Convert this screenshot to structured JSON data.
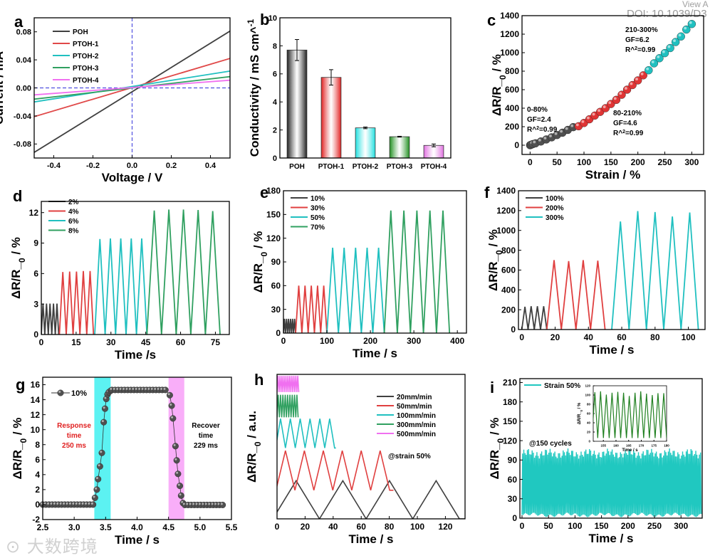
{
  "header": {
    "view_text": "View A",
    "doi": "DOI: 10.1039/D3"
  },
  "watermark": {
    "logo_text": "大数跨境"
  },
  "chart_data": [
    {
      "id": "a",
      "panel_label": "a",
      "type": "line",
      "xlabel": "Voltage / V",
      "ylabel": "Current / mA",
      "xlim": [
        -0.5,
        0.5
      ],
      "ylim": [
        -0.1,
        0.1
      ],
      "xticks": [
        -0.4,
        -0.2,
        0.0,
        0.2,
        0.4
      ],
      "xtick_labels": [
        "-0.4",
        "-0.2",
        "0.0",
        "0.2",
        "0.4"
      ],
      "yticks": [
        -0.08,
        -0.04,
        0.0,
        0.04,
        0.08
      ],
      "ytick_labels": [
        "-0.08",
        "-0.04",
        "0.00",
        "0.04",
        "0.08"
      ],
      "legend": "top-left",
      "reference_lines": {
        "x": 0,
        "y": 0,
        "color": "#5050e0"
      },
      "series": [
        {
          "name": "POH",
          "color": "#404040",
          "x": [
            -0.5,
            0.5
          ],
          "y": [
            -0.092,
            0.081
          ]
        },
        {
          "name": "PTOH-1",
          "color": "#e04848",
          "x": [
            -0.5,
            0.5
          ],
          "y": [
            -0.041,
            0.042
          ]
        },
        {
          "name": "PTOH-2",
          "color": "#20c0c0",
          "x": [
            -0.5,
            0.5
          ],
          "y": [
            -0.02,
            0.024
          ]
        },
        {
          "name": "PTOH-3",
          "color": "#30a060",
          "x": [
            -0.5,
            0.5
          ],
          "y": [
            -0.016,
            0.016
          ]
        },
        {
          "name": "PTOH-4",
          "color": "#f070f0",
          "x": [
            -0.5,
            0.5
          ],
          "y": [
            -0.01,
            0.011
          ]
        }
      ]
    },
    {
      "id": "b",
      "panel_label": "b",
      "type": "bar",
      "xlabel": "",
      "ylabel": "Conductivity / mS cm^-1",
      "ylim": [
        0,
        10
      ],
      "yticks": [
        0,
        2,
        4,
        6,
        8,
        10
      ],
      "ytick_labels": [
        "0",
        "2",
        "4",
        "6",
        "8",
        "10"
      ],
      "categories": [
        "POH",
        "PTOH-1",
        "PTOH-2",
        "PTOH-3",
        "PTOH-4"
      ],
      "values": [
        7.7,
        5.75,
        2.15,
        1.52,
        0.9
      ],
      "errors": [
        0.75,
        0.55,
        0.06,
        0.03,
        0.1
      ],
      "colors": [
        "#202020",
        "#e02020",
        "#20e0e0",
        "#209020",
        "#e070e0"
      ]
    },
    {
      "id": "c",
      "panel_label": "c",
      "type": "scatter",
      "xlabel": "Strain / %",
      "ylabel": "ΔR/R_0 / %",
      "xlim": [
        -15,
        322
      ],
      "ylim": [
        -100,
        1400
      ],
      "xticks": [
        0,
        50,
        100,
        150,
        200,
        250,
        300
      ],
      "xtick_labels": [
        "0",
        "50",
        "100",
        "150",
        "200",
        "250",
        "300"
      ],
      "yticks": [
        0,
        200,
        400,
        600,
        800,
        1000,
        1200,
        1400
      ],
      "ytick_labels": [
        "0",
        "200",
        "400",
        "600",
        "800",
        "1000",
        "1200",
        "1400"
      ],
      "series": [
        {
          "name": "0-80%",
          "color": "#505050",
          "x": [
            0,
            2,
            5,
            10,
            20,
            30,
            40,
            50,
            60,
            70,
            80
          ],
          "y": [
            0,
            5,
            12,
            20,
            40,
            62,
            85,
            110,
            135,
            165,
            195
          ]
        },
        {
          "name": "80-210%",
          "color": "#e03535",
          "x": [
            90,
            100,
            110,
            120,
            130,
            140,
            150,
            160,
            170,
            180,
            190,
            200,
            210
          ],
          "y": [
            205,
            240,
            280,
            320,
            360,
            400,
            445,
            490,
            545,
            600,
            650,
            700,
            755
          ]
        },
        {
          "name": "210-300%",
          "color": "#20c0c0",
          "x": [
            220,
            230,
            240,
            250,
            260,
            270,
            280,
            290,
            300
          ],
          "y": [
            810,
            885,
            940,
            995,
            1050,
            1115,
            1175,
            1250,
            1310
          ]
        }
      ],
      "annotations": [
        {
          "lines": [
            "0-80%",
            "GF=2.4",
            "R^2=0.99"
          ]
        },
        {
          "lines": [
            "80-210%",
            "GF=4.6",
            "R^2=0.99"
          ]
        },
        {
          "lines": [
            "210-300%",
            "GF=6.2",
            "R^2=0.99"
          ]
        }
      ]
    },
    {
      "id": "d",
      "panel_label": "d",
      "type": "line",
      "xlabel": "Time /s",
      "ylabel": "ΔR/R_0 / %",
      "xlim": [
        0,
        81
      ],
      "ylim": [
        0,
        13.1
      ],
      "xticks": [
        0,
        15,
        30,
        45,
        60,
        75
      ],
      "xtick_labels": [
        "0",
        "15",
        "30",
        "45",
        "60",
        "75"
      ],
      "yticks": [
        0,
        3,
        6,
        9,
        12
      ],
      "ytick_labels": [
        "0",
        "3",
        "6",
        "9",
        "12"
      ],
      "series": [
        {
          "name": "2%",
          "color": "#404040",
          "start": 0,
          "end": 7.5,
          "cycles": 5,
          "peaks": [
            3.05,
            3.05,
            3.05,
            3.05,
            3.05
          ]
        },
        {
          "name": "4%",
          "color": "#e04040",
          "start": 7.8,
          "end": 22.5,
          "cycles": 5,
          "peaks": [
            6.15,
            6.2,
            6.2,
            6.25,
            6.25
          ]
        },
        {
          "name": "6%",
          "color": "#20c0c0",
          "start": 23,
          "end": 45.5,
          "cycles": 5,
          "peaks": [
            9.4,
            9.45,
            9.45,
            9.45,
            9.45
          ]
        },
        {
          "name": "8%",
          "color": "#30a060",
          "start": 45.5,
          "end": 77,
          "cycles": 5,
          "peaks": [
            12.2,
            12.3,
            12.3,
            12.25,
            12.15
          ]
        }
      ]
    },
    {
      "id": "e",
      "panel_label": "e",
      "type": "line",
      "xlabel": "Time / s",
      "ylabel": "ΔR/R_0 / %",
      "xlim": [
        0,
        421
      ],
      "ylim": [
        0,
        180
      ],
      "xticks": [
        0,
        100,
        200,
        300,
        400
      ],
      "xtick_labels": [
        "0",
        "100",
        "200",
        "300",
        "400"
      ],
      "yticks": [
        0,
        30,
        60,
        90,
        120,
        150,
        180
      ],
      "ytick_labels": [
        "0",
        "30",
        "60",
        "90",
        "120",
        "150",
        "180"
      ],
      "series": [
        {
          "name": "10%",
          "color": "#404040",
          "start": 0,
          "end": 28,
          "cycles": 6,
          "peaks": [
            18,
            18,
            18,
            18,
            18,
            18
          ]
        },
        {
          "name": "30%",
          "color": "#e04040",
          "start": 28,
          "end": 100,
          "cycles": 5,
          "peaks": [
            60,
            60,
            60,
            60,
            60
          ]
        },
        {
          "name": "50%",
          "color": "#20c0c0",
          "start": 100,
          "end": 232,
          "cycles": 5,
          "peaks": [
            108,
            108,
            108,
            108,
            108
          ]
        },
        {
          "name": "70%",
          "color": "#30a060",
          "start": 232,
          "end": 382,
          "cycles": 5,
          "peaks": [
            155,
            155,
            155,
            155,
            155
          ]
        }
      ]
    },
    {
      "id": "f",
      "panel_label": "f",
      "type": "line",
      "xlabel": "Time / s",
      "ylabel": "ΔR/R_0 / %",
      "xlim": [
        -2,
        110
      ],
      "ylim": [
        0,
        1400
      ],
      "xticks": [
        0,
        20,
        40,
        60,
        80,
        100
      ],
      "xtick_labels": [
        "0",
        "20",
        "40",
        "60",
        "80",
        "100"
      ],
      "yticks": [
        0,
        200,
        400,
        600,
        800,
        1000,
        1200,
        1400
      ],
      "ytick_labels": [
        "0",
        "200",
        "400",
        "600",
        "800",
        "1000",
        "1200",
        "1400"
      ],
      "series": [
        {
          "name": "100%",
          "color": "#404040",
          "start": 0,
          "end": 15,
          "cycles": 4,
          "peaks": [
            230,
            235,
            235,
            235
          ]
        },
        {
          "name": "200%",
          "color": "#e04040",
          "start": 15,
          "end": 50,
          "cycles": 4,
          "peaks": [
            700,
            690,
            700,
            695
          ]
        },
        {
          "name": "300%",
          "color": "#20c0c0",
          "start": 54,
          "end": 106,
          "cycles": 5,
          "peaks": [
            1090,
            1195,
            1185,
            1140,
            1180
          ]
        }
      ]
    },
    {
      "id": "g",
      "panel_label": "g",
      "type": "scatter",
      "xlabel": "Time / s",
      "ylabel": "ΔR/R_0 / %",
      "xlim": [
        2.5,
        5.5
      ],
      "ylim": [
        -2,
        17
      ],
      "xticks": [
        2.5,
        3.0,
        3.5,
        4.0,
        4.5,
        5.0,
        5.5
      ],
      "xtick_labels": [
        "2.5",
        "3.0",
        "3.5",
        "4.0",
        "4.5",
        "5.0",
        "5.5"
      ],
      "yticks": [
        -2,
        0,
        2,
        4,
        6,
        8,
        10,
        12,
        14,
        16
      ],
      "ytick_labels": [
        "-2",
        "0",
        "2",
        "4",
        "6",
        "8",
        "10",
        "12",
        "14",
        "16"
      ],
      "series": [
        {
          "name": "10%",
          "color": "#505050",
          "flat": [
            [
              2.5,
              3.3,
              0
            ],
            [
              3.6,
              4.48,
              15.3
            ],
            [
              4.76,
              5.4,
              -0.05
            ]
          ],
          "x": [
            3.33,
            3.36,
            3.38,
            3.41,
            3.44,
            3.47,
            3.49,
            3.51,
            3.53,
            3.55,
            3.58,
            4.52,
            4.55,
            4.57,
            4.61,
            4.63,
            4.65,
            4.68,
            4.7,
            4.73
          ],
          "y": [
            0.9,
            2.0,
            3.4,
            5.1,
            6.9,
            11.0,
            12.8,
            14.1,
            14.7,
            15.0,
            15.2,
            14.6,
            13.2,
            11.5,
            7.8,
            5.9,
            4.1,
            2.5,
            1.2,
            0.2
          ]
        }
      ],
      "bands": [
        {
          "from": 3.32,
          "to": 3.58,
          "color": "#40f0f0",
          "label": [
            "Response",
            "time",
            "250 ms"
          ],
          "label_color": "#e02020"
        },
        {
          "from": 4.5,
          "to": 4.75,
          "color": "#f8a0f8",
          "label": [
            "Recover",
            "time",
            "229 ms"
          ],
          "label_color": "#000000"
        }
      ]
    },
    {
      "id": "h",
      "panel_label": "h",
      "type": "line",
      "xlabel": "Time / s",
      "ylabel": "ΔR/R_0 / a.u.",
      "xlim": [
        0,
        134
      ],
      "ylim": [
        0,
        10.6
      ],
      "xticks": [
        0,
        20,
        40,
        60,
        80,
        100,
        120
      ],
      "xtick_labels": [
        "0",
        "20",
        "40",
        "60",
        "80",
        "100",
        "120"
      ],
      "annotation": "@strain 50%",
      "series": [
        {
          "name": "20mm/min",
          "color": "#404040",
          "start": -3,
          "end": 130,
          "cycles": 4,
          "base": 0,
          "peak": 2.8,
          "tail": 134
        },
        {
          "name": "50mm/min",
          "color": "#e04040",
          "start": -0.75,
          "end": 80.25,
          "cycles": 6,
          "base": 2.1,
          "peak": 5.0,
          "tail": 83
        },
        {
          "name": "100mm/min",
          "color": "#20c0c0",
          "start": -1,
          "end": 41,
          "cycles": 6,
          "base": 5.2,
          "peak": 7.35,
          "tail": 42
        },
        {
          "name": "300mm/min",
          "color": "#30a060",
          "start": 0,
          "end": 15,
          "cycles": 9,
          "base": 7.45,
          "peak": 9.1,
          "tail": 15
        },
        {
          "name": "500mm/min",
          "color": "#f070f0",
          "start": 0,
          "end": 15.5,
          "cycles": 11,
          "base": 9.3,
          "peak": 10.5,
          "tail": 15.5
        }
      ]
    },
    {
      "id": "i",
      "panel_label": "i",
      "type": "line",
      "xlabel": "Time / s",
      "ylabel": "ΔR/R_0 / %",
      "xlim": [
        -4,
        340
      ],
      "ylim": [
        0,
        216
      ],
      "xticks": [
        0,
        50,
        100,
        150,
        200,
        250,
        300
      ],
      "xtick_labels": [
        "0",
        "50",
        "100",
        "150",
        "200",
        "250",
        "300"
      ],
      "yticks": [
        0,
        30,
        60,
        90,
        120,
        150,
        180,
        210
      ],
      "ytick_labels": [
        "0",
        "30",
        "60",
        "90",
        "120",
        "150",
        "180",
        "210"
      ],
      "annotation": "@150 cycles",
      "series": [
        {
          "name": "Strain 50%",
          "color": "#20c8c0",
          "start": 0,
          "end": 338,
          "cycles": 150,
          "peak_mean": 100,
          "min_mean": 5
        }
      ],
      "inset": {
        "xlabel": "Time / s",
        "ylabel": "ΔR/R_0 / %",
        "xlim": [
          151,
          180
        ],
        "ylim": [
          0,
          120
        ],
        "xticks": [
          155,
          160,
          165,
          170,
          175,
          180
        ],
        "xtick_labels": [
          "155",
          "160",
          "165",
          "170",
          "175",
          "180"
        ],
        "yticks": [
          0,
          20,
          40,
          60,
          80,
          100,
          120
        ],
        "ytick_labels": [
          "0",
          "20",
          "40",
          "60",
          "80",
          "100",
          "120"
        ],
        "color": "#208020",
        "start": 150.5,
        "end": 180,
        "cycles": 13,
        "base": 7,
        "peaks": [
          106,
          108,
          101,
          105,
          107,
          105,
          98,
          105,
          108,
          103,
          100,
          104,
          104
        ]
      }
    }
  ]
}
